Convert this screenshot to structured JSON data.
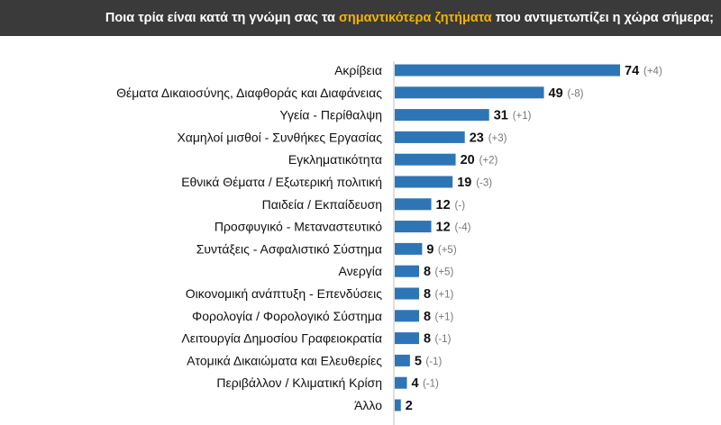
{
  "header": {
    "title_pre": "Ποια τρία είναι κατά τη γνώμη σας τα ",
    "title_highlight": "σημαντικότερα ζητήματα",
    "title_post": " που αντιμετωπίζει η χώρα σήμερα;",
    "background_color": "#3a3a3a",
    "highlight_color": "#f0b400"
  },
  "chart_data": {
    "type": "bar",
    "orientation": "horizontal",
    "bar_color": "#2e75b6",
    "xlim": [
      0,
      74
    ],
    "grid": false,
    "categories": [
      "Ακρίβεια",
      "Θέματα Δικαιοσύνης, Διαφθοράς και Διαφάνειας",
      "Υγεία - Περίθαλψη",
      "Χαμηλοί μισθοί - Συνθήκες Εργασίας",
      "Εγκληματικότητα",
      "Εθνικά Θέματα / Εξωτερική πολιτική",
      "Παιδεία / Εκπαίδευση",
      "Προσφυγικό - Μεταναστευτικό",
      "Συντάξεις - Ασφαλιστικό Σύστημα",
      "Ανεργία",
      "Οικονομική ανάπτυξη - Επενδύσεις",
      "Φορολογία / Φορολογικό Σύστημα",
      "Λειτουργία Δημοσίου  Γραφειοκρατία",
      "Ατομικά Δικαιώματα και Ελευθερίες",
      "Περιβάλλον / Κλιματική Κρίση",
      "Άλλο"
    ],
    "values": [
      74,
      49,
      31,
      23,
      20,
      19,
      12,
      12,
      9,
      8,
      8,
      8,
      8,
      5,
      4,
      2
    ],
    "changes": [
      "(+4)",
      "(-8)",
      "(+1)",
      "(+3)",
      "(+2)",
      "(-3)",
      "(-)",
      "(-4)",
      "(+5)",
      "(+5)",
      "(+1)",
      "(+1)",
      "(-1)",
      "(-1)",
      "(-1)",
      ""
    ]
  }
}
